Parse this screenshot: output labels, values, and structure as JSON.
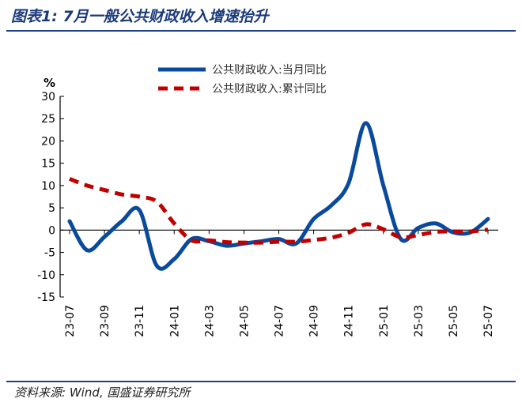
{
  "header": {
    "title": "图表1:  7月一般公共财政收入增速抬升"
  },
  "footer": {
    "source": "资料来源: Wind, 国盛证券研究所"
  },
  "chart_data": {
    "type": "line",
    "title": "图表1:  7月一般公共财政收入增速抬升",
    "ylabel": "%",
    "xlabel": "",
    "ylim": [
      -15,
      30
    ],
    "yticks": [
      30,
      25,
      20,
      15,
      10,
      5,
      0,
      -5,
      -10,
      -15
    ],
    "x": [
      "23-07",
      "23-08",
      "23-09",
      "23-10",
      "23-11",
      "23-12",
      "24-01",
      "24-02",
      "24-03",
      "24-04",
      "24-05",
      "24-06",
      "24-07",
      "24-08",
      "24-09",
      "24-10",
      "24-11",
      "24-12",
      "25-01",
      "25-02",
      "25-03",
      "25-04",
      "25-05",
      "25-06",
      "25-07"
    ],
    "xtick_labels": [
      "23-07",
      "23-09",
      "23-11",
      "24-01",
      "24-03",
      "24-05",
      "24-07",
      "24-09",
      "24-11",
      "25-01",
      "25-03",
      "25-05",
      "25-07"
    ],
    "legend_position": "top-right",
    "series": [
      {
        "name": "公共财政收入:当月同比",
        "color": "#0a4a9c",
        "style": "solid",
        "values": [
          2,
          -4.5,
          -1.5,
          2,
          4.5,
          -8,
          -6.5,
          -2,
          -2.5,
          -3.5,
          -3,
          -2.5,
          -2,
          -3,
          2.5,
          5.5,
          10.5,
          24,
          10,
          -2,
          0.5,
          1.5,
          -0.5,
          -0.5,
          2.5
        ]
      },
      {
        "name": "公共财政收入:累计同比",
        "color": "#c00000",
        "style": "dashed",
        "values": [
          11.5,
          10,
          9,
          8,
          7.5,
          6.4,
          1.5,
          -2.3,
          -2.3,
          -2.7,
          -2.8,
          -2.8,
          -2.6,
          -2.6,
          -2.2,
          -1.7,
          -0.6,
          1.3,
          0.2,
          -1.6,
          -1.1,
          -0.4,
          -0.3,
          -0.3,
          0.1
        ]
      }
    ]
  }
}
